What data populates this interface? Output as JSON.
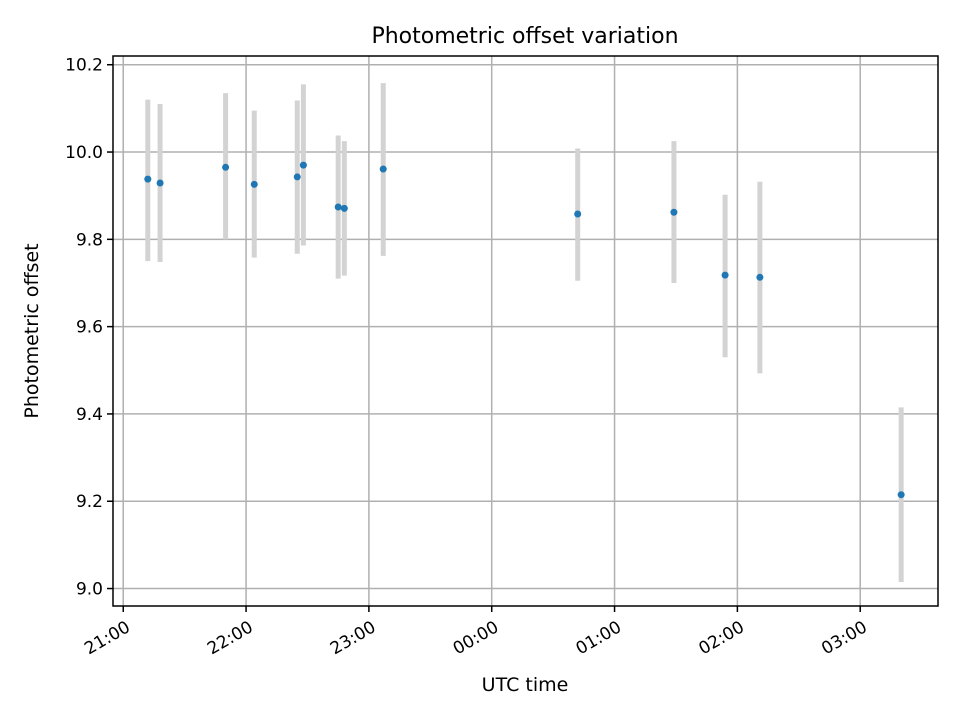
{
  "chart_data": {
    "type": "scatter",
    "title": "Photometric offset variation",
    "xlabel": "UTC time",
    "ylabel": "Photometric offset",
    "grid": true,
    "xlim": [
      "20:55",
      "27:38"
    ],
    "ylim": [
      8.96,
      10.22
    ],
    "x_ticks": [
      "21:00",
      "22:00",
      "23:00",
      "00:00",
      "01:00",
      "02:00",
      "03:00"
    ],
    "y_ticks": [
      "9.0",
      "9.2",
      "9.4",
      "9.6",
      "9.8",
      "10.0",
      "10.2"
    ],
    "series": [
      {
        "color": "#1f77b4",
        "error_color": "#d3d3d3",
        "points": [
          {
            "t": "21:12",
            "y": 9.938,
            "lo": 9.75,
            "hi": 10.12
          },
          {
            "t": "21:18",
            "y": 9.929,
            "lo": 9.748,
            "hi": 10.11
          },
          {
            "t": "21:50",
            "y": 9.965,
            "lo": 9.8,
            "hi": 10.135
          },
          {
            "t": "22:04",
            "y": 9.926,
            "lo": 9.758,
            "hi": 10.095
          },
          {
            "t": "22:25",
            "y": 9.943,
            "lo": 9.767,
            "hi": 10.118
          },
          {
            "t": "22:28",
            "y": 9.97,
            "lo": 9.786,
            "hi": 10.155
          },
          {
            "t": "22:45",
            "y": 9.874,
            "lo": 9.71,
            "hi": 10.038
          },
          {
            "t": "22:48",
            "y": 9.871,
            "lo": 9.717,
            "hi": 10.025
          },
          {
            "t": "23:07",
            "y": 9.961,
            "lo": 9.762,
            "hi": 10.158
          },
          {
            "t": "00:42",
            "y": 9.858,
            "lo": 9.705,
            "hi": 10.008
          },
          {
            "t": "01:29",
            "y": 9.862,
            "lo": 9.7,
            "hi": 10.025
          },
          {
            "t": "01:54",
            "y": 9.718,
            "lo": 9.53,
            "hi": 9.902
          },
          {
            "t": "02:11",
            "y": 9.713,
            "lo": 9.493,
            "hi": 9.932
          },
          {
            "t": "03:20",
            "y": 9.215,
            "lo": 9.015,
            "hi": 9.415
          }
        ]
      }
    ]
  }
}
